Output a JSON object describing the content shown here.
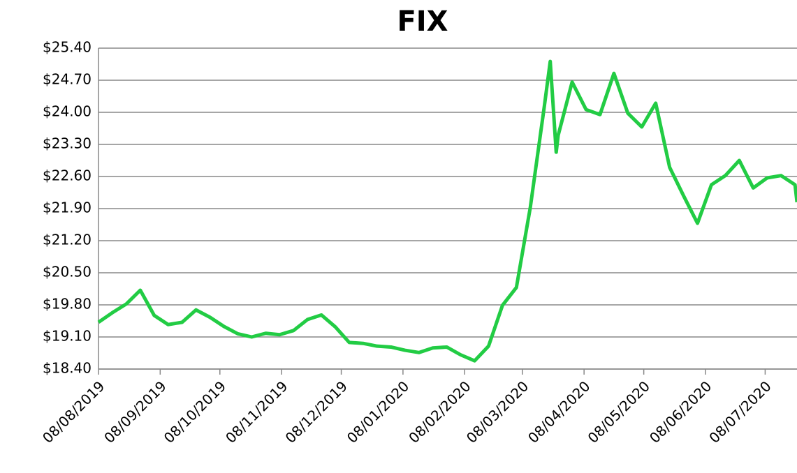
{
  "chart_data": {
    "type": "line",
    "title": "FIX",
    "x": [
      "08/08/2019",
      "15/08/2019",
      "22/08/2019",
      "29/08/2019",
      "05/09/2019",
      "12/09/2019",
      "19/09/2019",
      "26/09/2019",
      "03/10/2019",
      "10/10/2019",
      "17/10/2019",
      "24/10/2019",
      "31/10/2019",
      "07/11/2019",
      "14/11/2019",
      "21/11/2019",
      "28/11/2019",
      "05/12/2019",
      "12/12/2019",
      "19/12/2019",
      "26/12/2019",
      "02/01/2020",
      "09/01/2020",
      "16/01/2020",
      "23/01/2020",
      "30/01/2020",
      "06/02/2020",
      "13/02/2020",
      "20/02/2020",
      "27/02/2020",
      "05/03/2020",
      "12/03/2020",
      "19/03/2020",
      "22/03/2020",
      "25/03/2020",
      "26/03/2020",
      "02/04/2020",
      "09/04/2020",
      "16/04/2020",
      "23/04/2020",
      "30/04/2020",
      "07/05/2020",
      "14/05/2020",
      "21/05/2020",
      "28/05/2020",
      "04/06/2020",
      "11/06/2020",
      "18/06/2020",
      "25/06/2020",
      "02/07/2020",
      "09/07/2020",
      "16/07/2020",
      "23/07/2020",
      "24/07/2020"
    ],
    "series": [
      {
        "name": "FIX",
        "color": "#22cc44",
        "values": [
          19.42,
          19.63,
          19.82,
          20.12,
          19.57,
          19.37,
          19.42,
          19.69,
          19.53,
          19.33,
          19.17,
          19.1,
          19.18,
          19.15,
          19.24,
          19.48,
          19.58,
          19.32,
          18.98,
          18.96,
          18.9,
          18.88,
          18.81,
          18.76,
          18.86,
          18.88,
          18.71,
          18.58,
          18.9,
          19.79,
          20.18,
          21.93,
          24.12,
          25.11,
          23.13,
          23.5,
          24.66,
          24.06,
          23.95,
          24.85,
          23.98,
          23.68,
          24.2,
          22.8,
          22.18,
          21.58,
          22.42,
          22.62,
          22.95,
          22.35,
          22.57,
          22.62,
          22.42,
          22.04
        ]
      }
    ],
    "xlim": [
      "08/08/2019",
      "24/07/2020"
    ],
    "xticks": [
      "08/08/2019",
      "08/09/2019",
      "08/10/2019",
      "08/11/2019",
      "08/12/2019",
      "08/01/2020",
      "08/02/2020",
      "08/03/2020",
      "08/04/2020",
      "08/05/2020",
      "08/06/2020",
      "08/07/2020"
    ],
    "ylim": [
      18.4,
      25.4
    ],
    "yticks": [
      {
        "value": 18.4,
        "label": "$18.40"
      },
      {
        "value": 19.1,
        "label": "$19.10"
      },
      {
        "value": 19.8,
        "label": "$19.80"
      },
      {
        "value": 20.5,
        "label": "$20.50"
      },
      {
        "value": 21.2,
        "label": "$21.20"
      },
      {
        "value": 21.9,
        "label": "$21.90"
      },
      {
        "value": 22.6,
        "label": "$22.60"
      },
      {
        "value": 23.3,
        "label": "$23.30"
      },
      {
        "value": 24,
        "label": "$24.00"
      },
      {
        "value": 24.7,
        "label": "$24.70"
      },
      {
        "value": 25.4,
        "label": "$25.40"
      }
    ],
    "grid": true
  }
}
